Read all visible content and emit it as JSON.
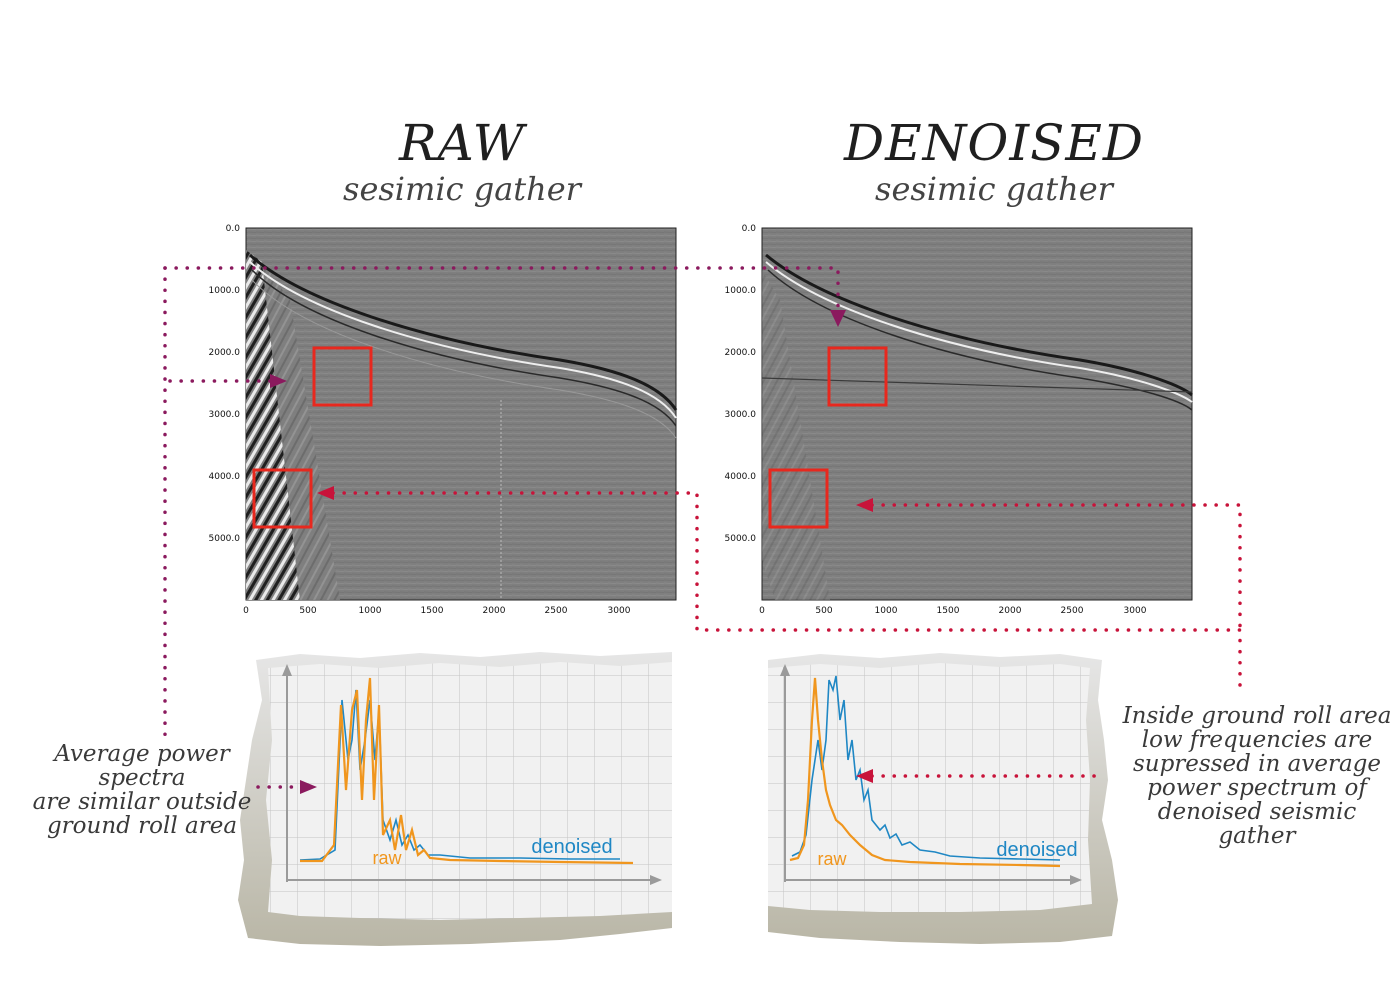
{
  "panels": {
    "raw": {
      "title": "RAW",
      "subtitle": "sesimic gather"
    },
    "denoised": {
      "title": "DENOISED",
      "subtitle": "sesimic gather"
    }
  },
  "axes": {
    "y_ticks": [
      "0.0",
      "1000.0",
      "2000.0",
      "3000.0",
      "4000.0",
      "5000.0"
    ],
    "x_ticks": [
      "0",
      "500",
      "1000",
      "1500",
      "2000",
      "2500",
      "3000"
    ]
  },
  "spectra": {
    "left": {
      "raw_label": "raw",
      "denoised_label": "denoised"
    },
    "right": {
      "raw_label": "raw",
      "denoised_label": "denoised"
    }
  },
  "annotations": {
    "left_note": [
      "Average power spectra",
      "are similar outside",
      "ground roll area"
    ],
    "right_note": [
      "Inside ground roll area",
      "low frequencies are",
      "supressed in average",
      "power spectrum of",
      "denoised seismic gather"
    ]
  },
  "colors": {
    "raw": "#f0961e",
    "denoised": "#1f87c4",
    "box": "#e8281e",
    "connector_purple": "#8b1a5e",
    "connector_red": "#c8133a",
    "gather_bg": "#7f7f7f"
  }
}
